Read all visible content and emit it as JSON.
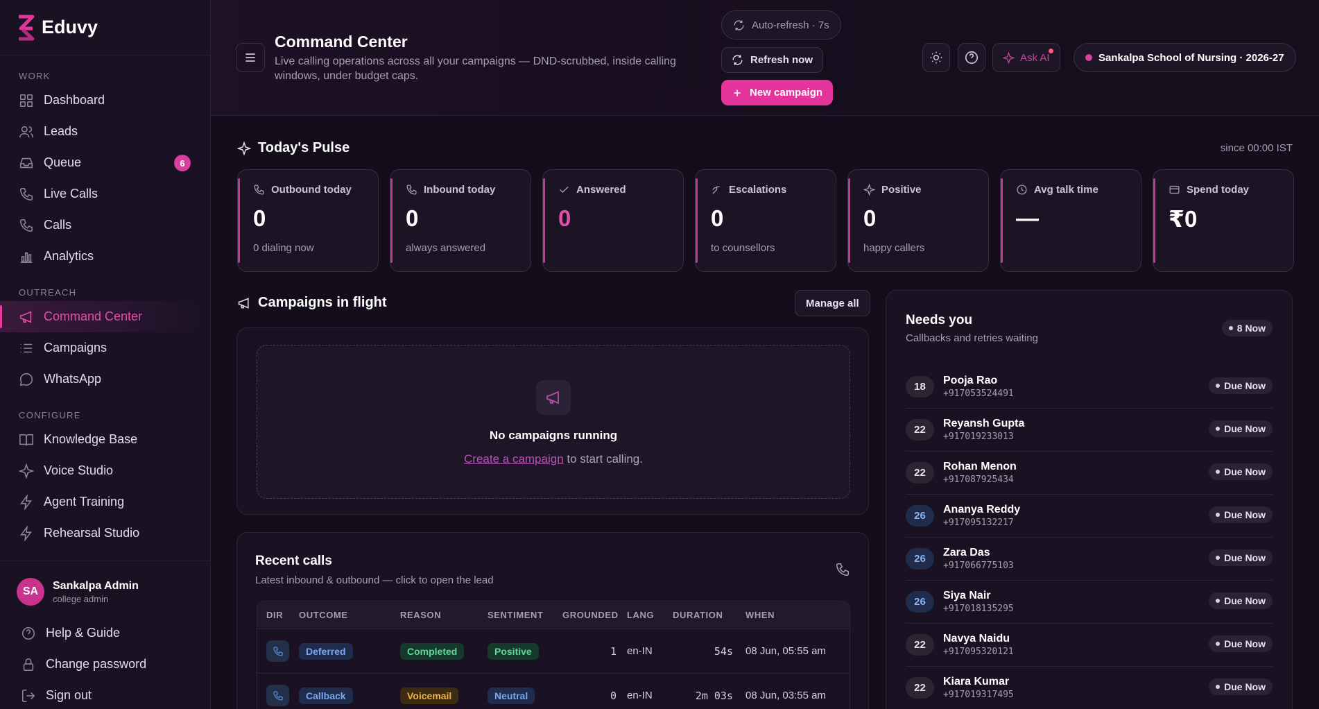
{
  "brand": {
    "name": "Eduvy"
  },
  "sidebar": {
    "sections": {
      "work": "WORK",
      "outreach": "OUTREACH",
      "configure": "CONFIGURE"
    },
    "work_items": [
      {
        "label": "Dashboard",
        "icon": "grid-icon"
      },
      {
        "label": "Leads",
        "icon": "users-icon"
      },
      {
        "label": "Queue",
        "icon": "inbox-icon",
        "badge": "6"
      },
      {
        "label": "Live Calls",
        "icon": "phone-icon"
      },
      {
        "label": "Calls",
        "icon": "phone-icon"
      },
      {
        "label": "Analytics",
        "icon": "bar-chart-icon"
      }
    ],
    "outreach_items": [
      {
        "label": "Command Center",
        "icon": "megaphone-icon",
        "active": true
      },
      {
        "label": "Campaigns",
        "icon": "list-icon"
      },
      {
        "label": "WhatsApp",
        "icon": "chat-bubble-icon"
      }
    ],
    "configure_items": [
      {
        "label": "Knowledge Base",
        "icon": "book-icon"
      },
      {
        "label": "Voice Studio",
        "icon": "sparkle-icon"
      },
      {
        "label": "Agent Training",
        "icon": "bolt-icon"
      },
      {
        "label": "Rehearsal Studio",
        "icon": "bolt-icon"
      }
    ],
    "user": {
      "initials": "SA",
      "name": "Sankalpa Admin",
      "role": "college admin"
    },
    "footer_items": [
      {
        "label": "Help & Guide",
        "icon": "help-circle-icon"
      },
      {
        "label": "Change password",
        "icon": "lock-icon"
      },
      {
        "label": "Sign out",
        "icon": "sign-out-icon"
      }
    ]
  },
  "header": {
    "title": "Command Center",
    "subtitle": "Live calling operations across all your campaigns — DND-scrubbed, inside calling windows, under budget caps.",
    "auto_refresh": "Auto-refresh · 7s",
    "refresh_now": "Refresh now",
    "new_campaign": "New campaign",
    "ask_ai": "Ask AI",
    "school": "Sankalpa School of Nursing · 2026-27"
  },
  "pulse": {
    "title": "Today's Pulse",
    "since": "since 00:00 IST",
    "stats": [
      {
        "label": "Outbound today",
        "value": "0",
        "sub": "0 dialing now",
        "icon": "phone-icon"
      },
      {
        "label": "Inbound today",
        "value": "0",
        "sub": "always answered",
        "icon": "phone-icon"
      },
      {
        "label": "Answered",
        "value": "0",
        "sub": "",
        "icon": "check-icon",
        "accent": "#e24fa9"
      },
      {
        "label": "Escalations",
        "value": "0",
        "sub": "to counsellors",
        "icon": "escalate-icon"
      },
      {
        "label": "Positive",
        "value": "0",
        "sub": "happy callers",
        "icon": "sparkle-icon"
      },
      {
        "label": "Avg talk time",
        "value": "—",
        "sub": "",
        "icon": "clock-icon"
      },
      {
        "label": "Spend today",
        "value": "₹0",
        "sub": "",
        "icon": "card-icon"
      }
    ]
  },
  "campaigns": {
    "title": "Campaigns in flight",
    "manage_all": "Manage all",
    "empty_title": "No campaigns running",
    "empty_link": "Create a campaign",
    "empty_suffix": " to start calling."
  },
  "recent_calls": {
    "title": "Recent calls",
    "subtitle": "Latest inbound & outbound — click to open the lead",
    "columns": [
      "DIR",
      "OUTCOME",
      "REASON",
      "SENTIMENT",
      "GROUNDED",
      "LANG",
      "DURATION",
      "WHEN"
    ],
    "rows": [
      {
        "outcome": "Deferred",
        "reason": "Completed",
        "sentiment": "Positive",
        "grounded": "1",
        "lang": "en-IN",
        "duration": "54s",
        "when": "08 Jun, 05:55 am"
      },
      {
        "outcome": "Callback",
        "reason": "Voicemail",
        "sentiment": "Neutral",
        "grounded": "0",
        "lang": "en-IN",
        "duration": "2m 03s",
        "when": "08 Jun, 03:55 am"
      }
    ]
  },
  "needs_you": {
    "title": "Needs you",
    "subtitle": "Callbacks and retries waiting",
    "badge": "8 Now",
    "items": [
      {
        "score": "18",
        "name": "Pooja Rao",
        "phone": "+917053524491",
        "status": "Due Now",
        "tone": "grey"
      },
      {
        "score": "22",
        "name": "Reyansh Gupta",
        "phone": "+917019233013",
        "status": "Due Now",
        "tone": "grey"
      },
      {
        "score": "22",
        "name": "Rohan Menon",
        "phone": "+917087925434",
        "status": "Due Now",
        "tone": "grey"
      },
      {
        "score": "26",
        "name": "Ananya Reddy",
        "phone": "+917095132217",
        "status": "Due Now",
        "tone": "blue"
      },
      {
        "score": "26",
        "name": "Zara Das",
        "phone": "+917066775103",
        "status": "Due Now",
        "tone": "blue"
      },
      {
        "score": "26",
        "name": "Siya Nair",
        "phone": "+917018135295",
        "status": "Due Now",
        "tone": "blue"
      },
      {
        "score": "22",
        "name": "Navya Naidu",
        "phone": "+917095320121",
        "status": "Due Now",
        "tone": "grey"
      },
      {
        "score": "22",
        "name": "Kiara Kumar",
        "phone": "+917019317495",
        "status": "Due Now",
        "tone": "grey"
      }
    ]
  }
}
